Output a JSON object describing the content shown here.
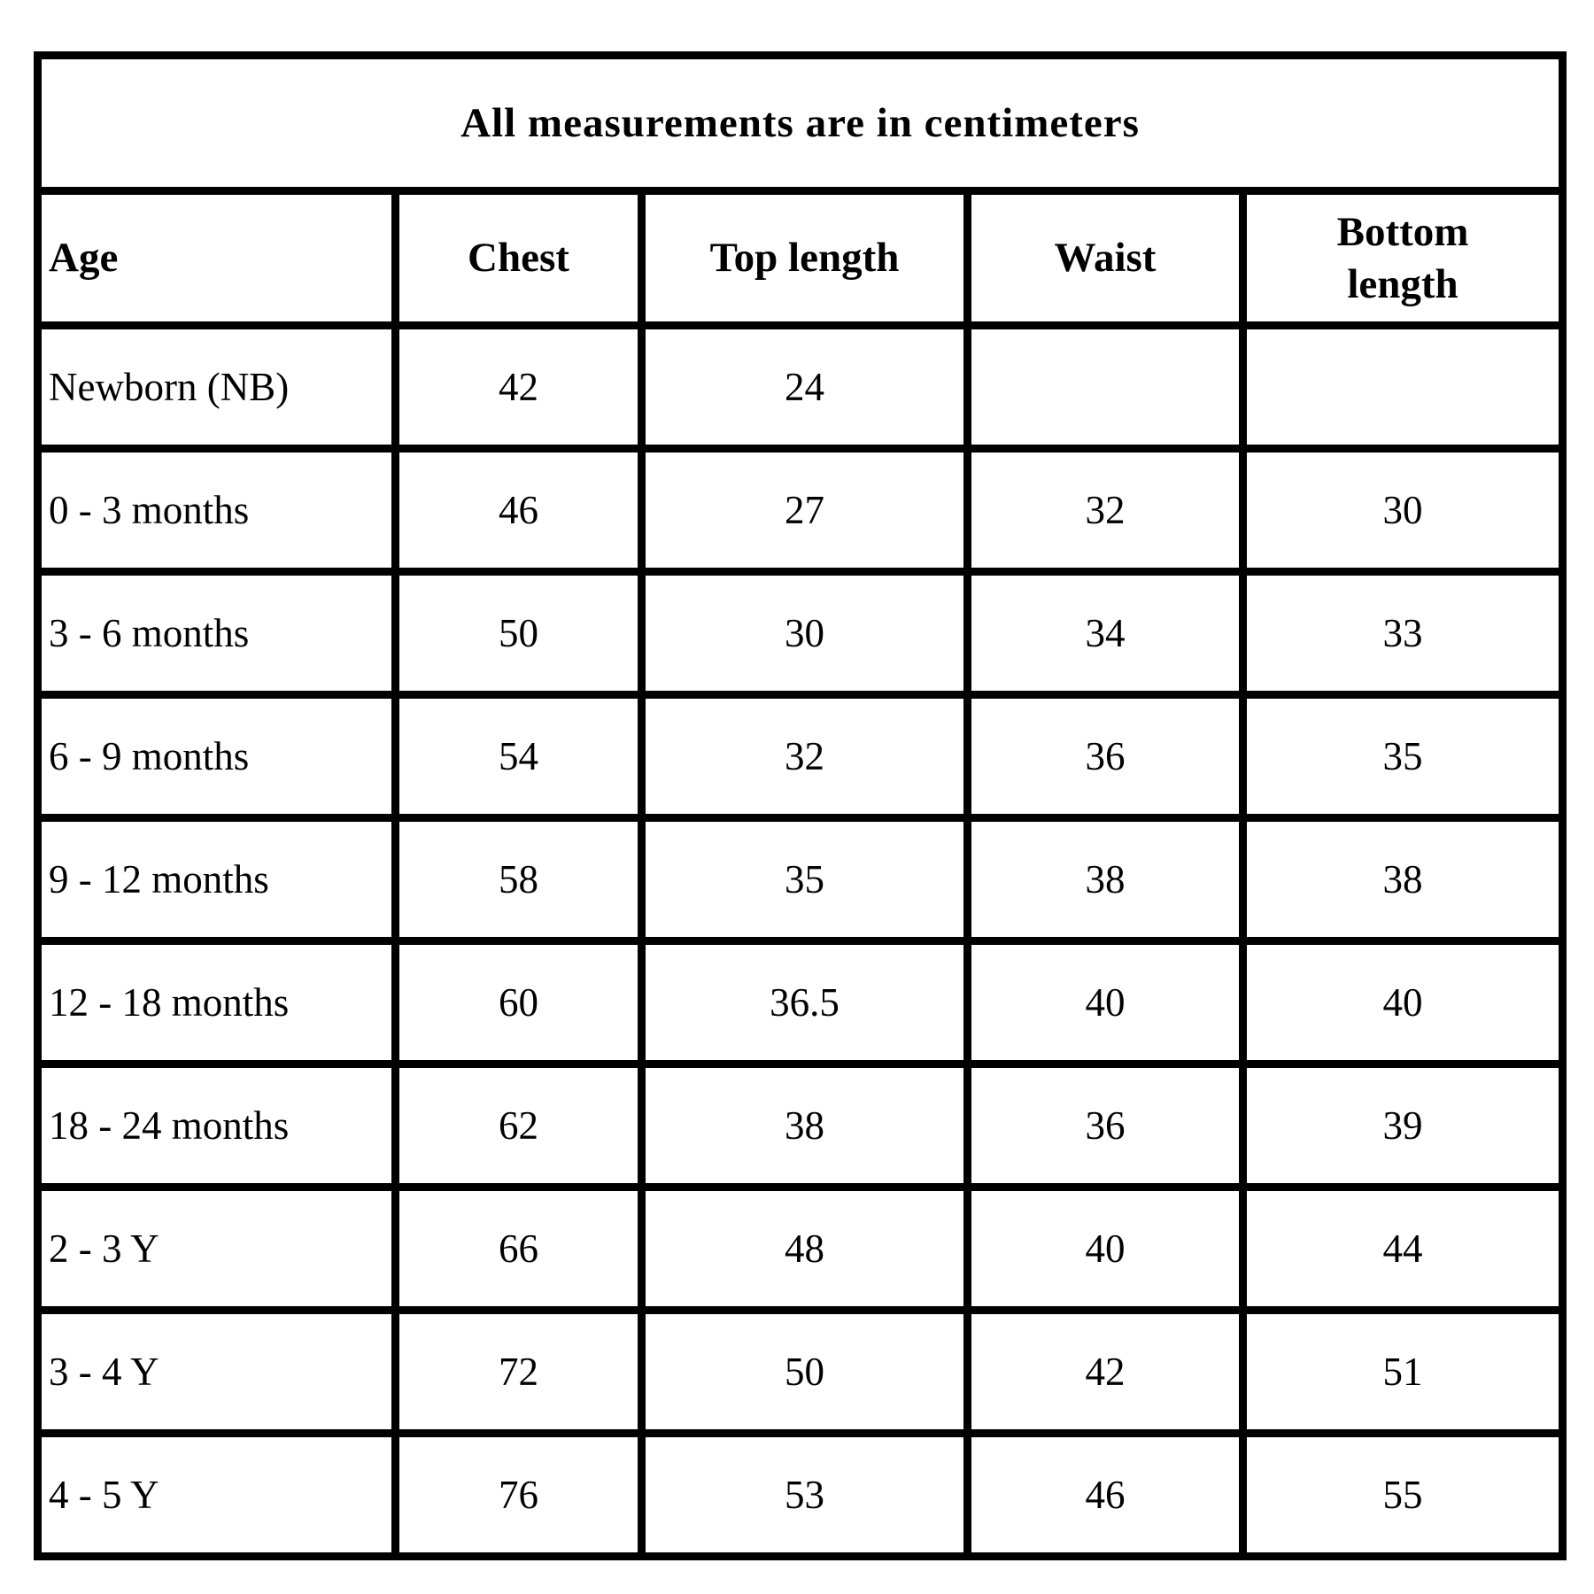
{
  "table": {
    "title": "All measurements are in centimeters",
    "columns": [
      "Age",
      "Chest",
      "Top length",
      "Waist",
      "Bottom\nlength"
    ],
    "rows": [
      [
        "Newborn (NB)",
        "42",
        "24",
        "",
        ""
      ],
      [
        "0 - 3 months",
        "46",
        "27",
        "32",
        "30"
      ],
      [
        "3 - 6 months",
        "50",
        "30",
        "34",
        "33"
      ],
      [
        "6 - 9 months",
        "54",
        "32",
        "36",
        "35"
      ],
      [
        "9 - 12 months",
        "58",
        "35",
        "38",
        "38"
      ],
      [
        "12 - 18 months",
        "60",
        "36.5",
        "40",
        "40"
      ],
      [
        "18 - 24 months",
        "62",
        "38",
        "36",
        "39"
      ],
      [
        "2 - 3 Y",
        "66",
        "48",
        "40",
        "44"
      ],
      [
        "3 - 4 Y",
        "72",
        "50",
        "42",
        "51"
      ],
      [
        "4 - 5 Y",
        "76",
        "53",
        "46",
        "55"
      ]
    ]
  },
  "colors": {
    "border": "#000000",
    "background": "#ffffff",
    "text": "#000000"
  }
}
